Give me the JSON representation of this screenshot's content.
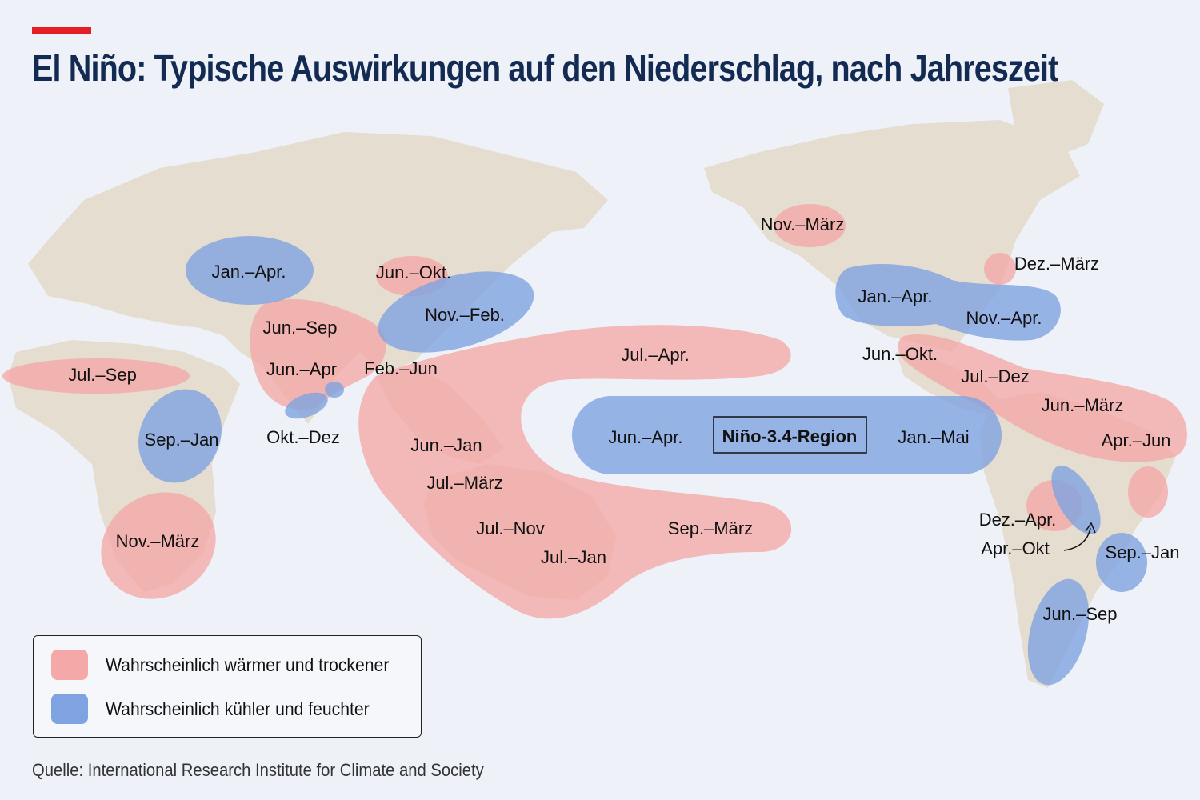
{
  "title": "El Niño: Typische Auswirkungen auf den Niederschlag, nach Jahreszeit",
  "colors": {
    "accent": "#e31e24",
    "dry": "#f4a9a8",
    "wet": "#7fa3e0",
    "land": "#e4ddd0",
    "ocean": "#eef2f8",
    "title": "#132a52"
  },
  "map": {
    "dry_zones": [
      "Jul.–Sep",
      "Nov.–März",
      "Jun.–Sep",
      "Jun.–Apr",
      "Jun.–Okt.",
      "Feb.–Jun",
      "Jul.–Apr.",
      "Jun.–Jan",
      "Jul.–März",
      "Jul.–Nov",
      "Jul.–Jan",
      "Sep.–März",
      "Nov.–März",
      "Dez.–März",
      "Jun.–Okt.",
      "Jul.–Dez",
      "Jun.–März",
      "Apr.–Jun",
      "Dez.–Apr."
    ],
    "wet_zones": [
      "Jan.–Apr.",
      "Sep.–Jan",
      "Okt.–Dez",
      "Nov.–Feb.",
      "Jun.–Apr.",
      "Jan.–Mai",
      "Jan.–Apr.",
      "Nov.–Apr.",
      "Apr.–Okt",
      "Sep.–Jan",
      "Jun.–Sep"
    ],
    "region_label": "Niño-3.4-Region",
    "labels": {
      "africa_west": "Jul.–Sep",
      "africa_east": "Sep.–Jan",
      "africa_south": "Nov.–März",
      "europe": "Jan.–Apr.",
      "middle_east": "Jun.–Sep",
      "india": "Jun.–Apr",
      "india_south": "Okt.–Dez",
      "china_north": "Jun.–Okt.",
      "japan": "Nov.–Feb.",
      "se_asia_north": "Feb.–Jun",
      "pacific_north": "Jul.–Apr.",
      "indonesia": "Jun.–Jan",
      "australia_north": "Jul.–März",
      "australia_mid": "Jul.–Nov",
      "australia_south": "Jul.–Jan",
      "pacific_south": "Sep.–März",
      "pacific_west_eq": "Jun.–Apr.",
      "pacific_east_eq": "Jan.–Mai",
      "canada": "Nov.–März",
      "us_west": "Jan.–Apr.",
      "us_east": "Nov.–Apr.",
      "us_northeast": "Dez.–März",
      "mexico": "Jun.–Okt.",
      "central_america": "Jul.–Dez",
      "south_america_north": "Jun.–März",
      "brazil_ne": "Apr.–Jun",
      "bolivia": "Dez.–Apr.",
      "south_america_mid": "Apr.–Okt",
      "brazil_south": "Sep.–Jan",
      "argentina": "Jun.–Sep"
    }
  },
  "legend": {
    "dry_label": "Wahrscheinlich wärmer und trockener",
    "wet_label": "Wahrscheinlich kühler und feuchter"
  },
  "source": "Quelle: International Research Institute for Climate and Society"
}
